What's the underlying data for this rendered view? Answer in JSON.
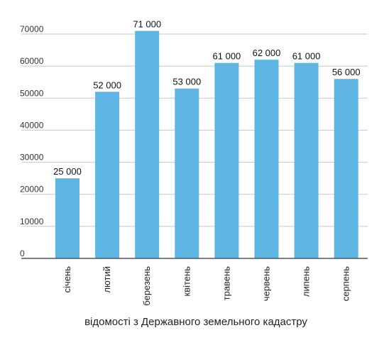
{
  "chart_data": {
    "type": "bar",
    "categories": [
      "січень",
      "лютий",
      "березень",
      "квітень",
      "травень",
      "червень",
      "липень",
      "серпень"
    ],
    "values": [
      25000,
      52000,
      71000,
      53000,
      61000,
      62000,
      61000,
      56000
    ],
    "data_labels": [
      "25 000",
      "52 000",
      "71 000",
      "53 000",
      "61 000",
      "62 000",
      "61 000",
      "56 000"
    ],
    "y_ticks": [
      0,
      10000,
      20000,
      30000,
      40000,
      50000,
      60000,
      70000
    ],
    "ylim": [
      0,
      70000
    ],
    "xlabel": "відомості з Державного земельного кадастру",
    "ylabel": "",
    "title": "",
    "grid": true,
    "bar_color": "#5eb5e3"
  }
}
